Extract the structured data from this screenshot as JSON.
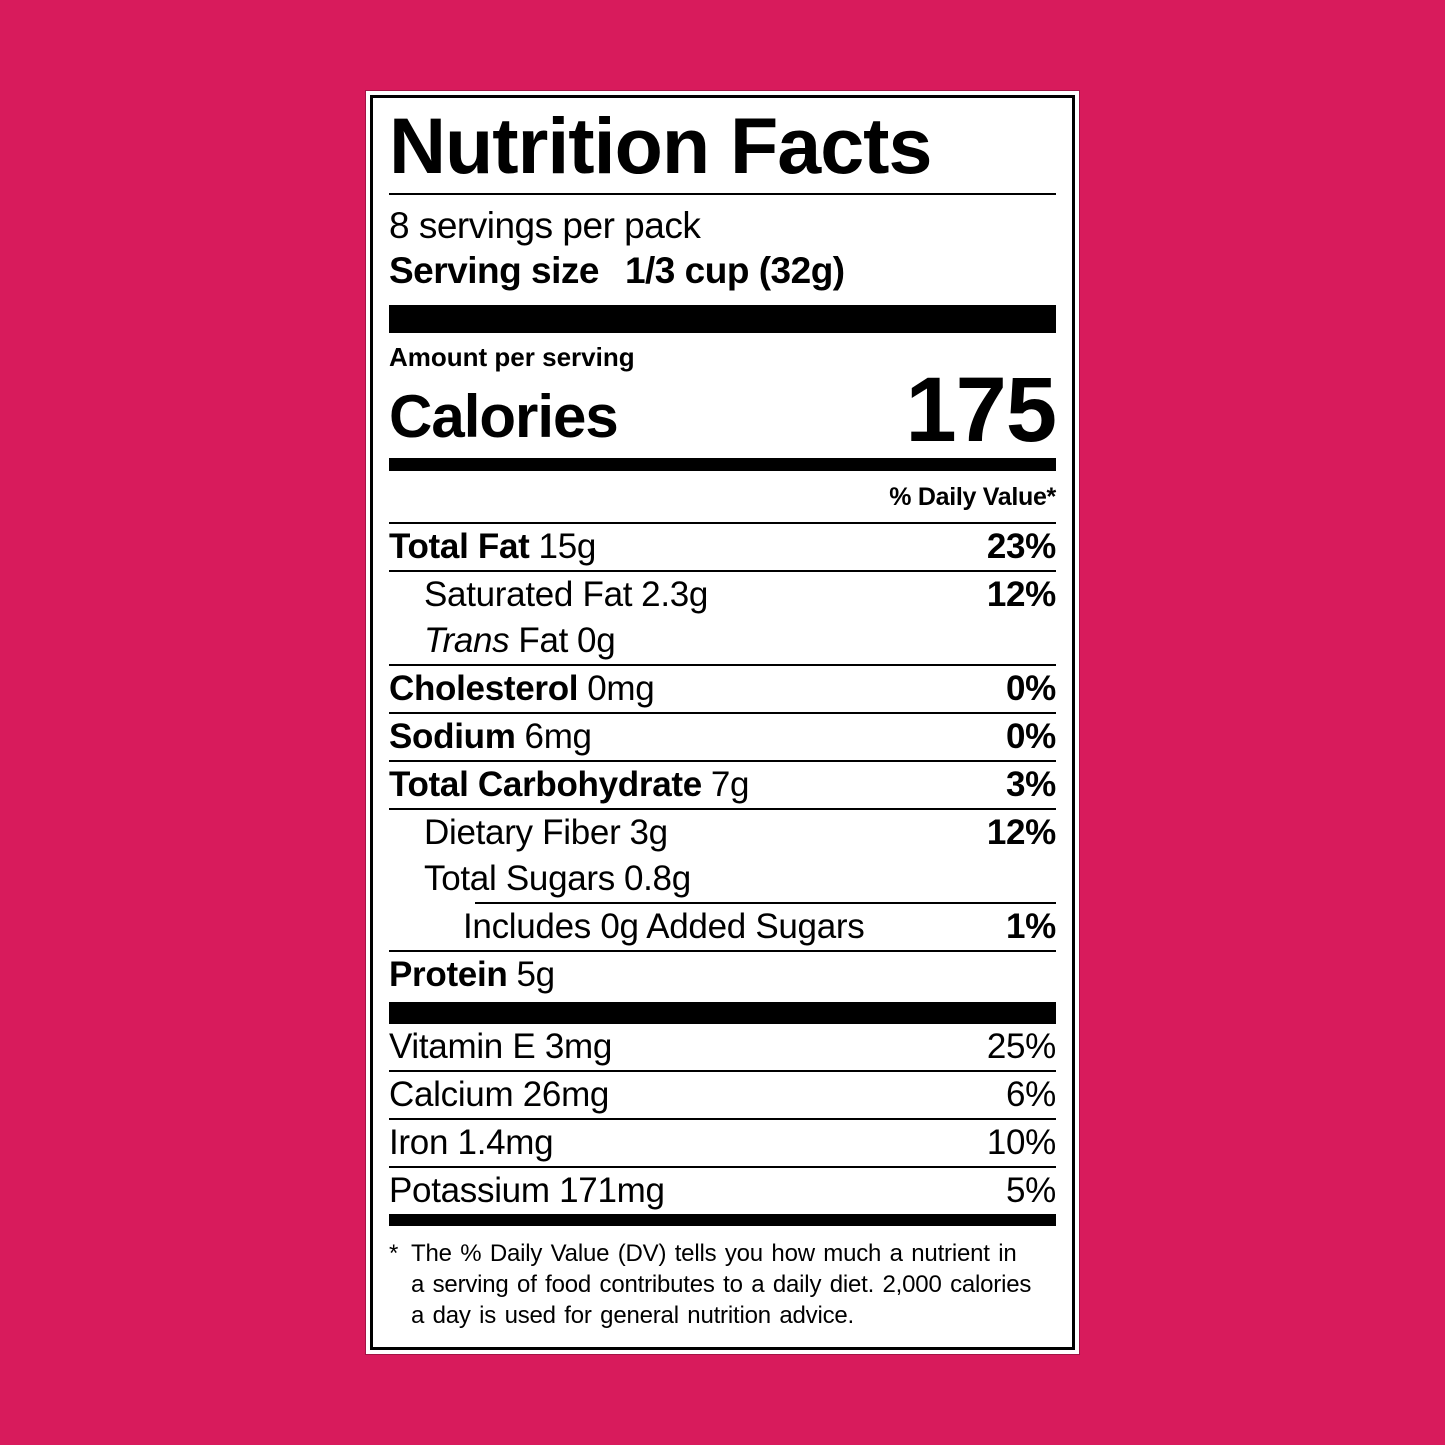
{
  "background_color": "#D81B5C",
  "label": {
    "title": "Nutrition Facts",
    "servings_per_pack": "8 servings per pack",
    "serving_size_label": "Serving size",
    "serving_size_value": "1/3 cup (32g)",
    "amount_per_serving": "Amount per serving",
    "calories_label": "Calories",
    "calories_value": "175",
    "daily_value_header": "% Daily Value*",
    "rows": [
      {
        "name": "Total Fat",
        "amount": "15g",
        "dv": "23%"
      },
      {
        "name": "Saturated Fat",
        "amount": "2.3g",
        "dv": "12%"
      },
      {
        "name_italic": "Trans",
        "name": "Fat",
        "amount": "0g"
      },
      {
        "name": "Cholesterol",
        "amount": "0mg",
        "dv": "0%"
      },
      {
        "name": "Sodium",
        "amount": "6mg",
        "dv": "0%"
      },
      {
        "name": "Total Carbohydrate",
        "amount": "7g",
        "dv": "3%"
      },
      {
        "name": "Dietary Fiber",
        "amount": "3g",
        "dv": "12%"
      },
      {
        "name": "Total Sugars",
        "amount": "0.8g"
      },
      {
        "name": "Includes 0g Added Sugars",
        "dv": "1%"
      },
      {
        "name": "Protein",
        "amount": "5g"
      }
    ],
    "vitamins": [
      {
        "name": "Vitamin E 3mg",
        "dv": "25%"
      },
      {
        "name": "Calcium 26mg",
        "dv": "6%"
      },
      {
        "name": "Iron 1.4mg",
        "dv": "10%"
      },
      {
        "name": "Potassium 171mg",
        "dv": "5%"
      }
    ],
    "footnote_marker": "*",
    "footnote_lines": [
      "The % Daily Value (DV) tells you how much a nutrient in",
      "a serving of food contributes to a daily diet. 2,000 calories",
      "a day is used for general nutrition advice."
    ]
  }
}
